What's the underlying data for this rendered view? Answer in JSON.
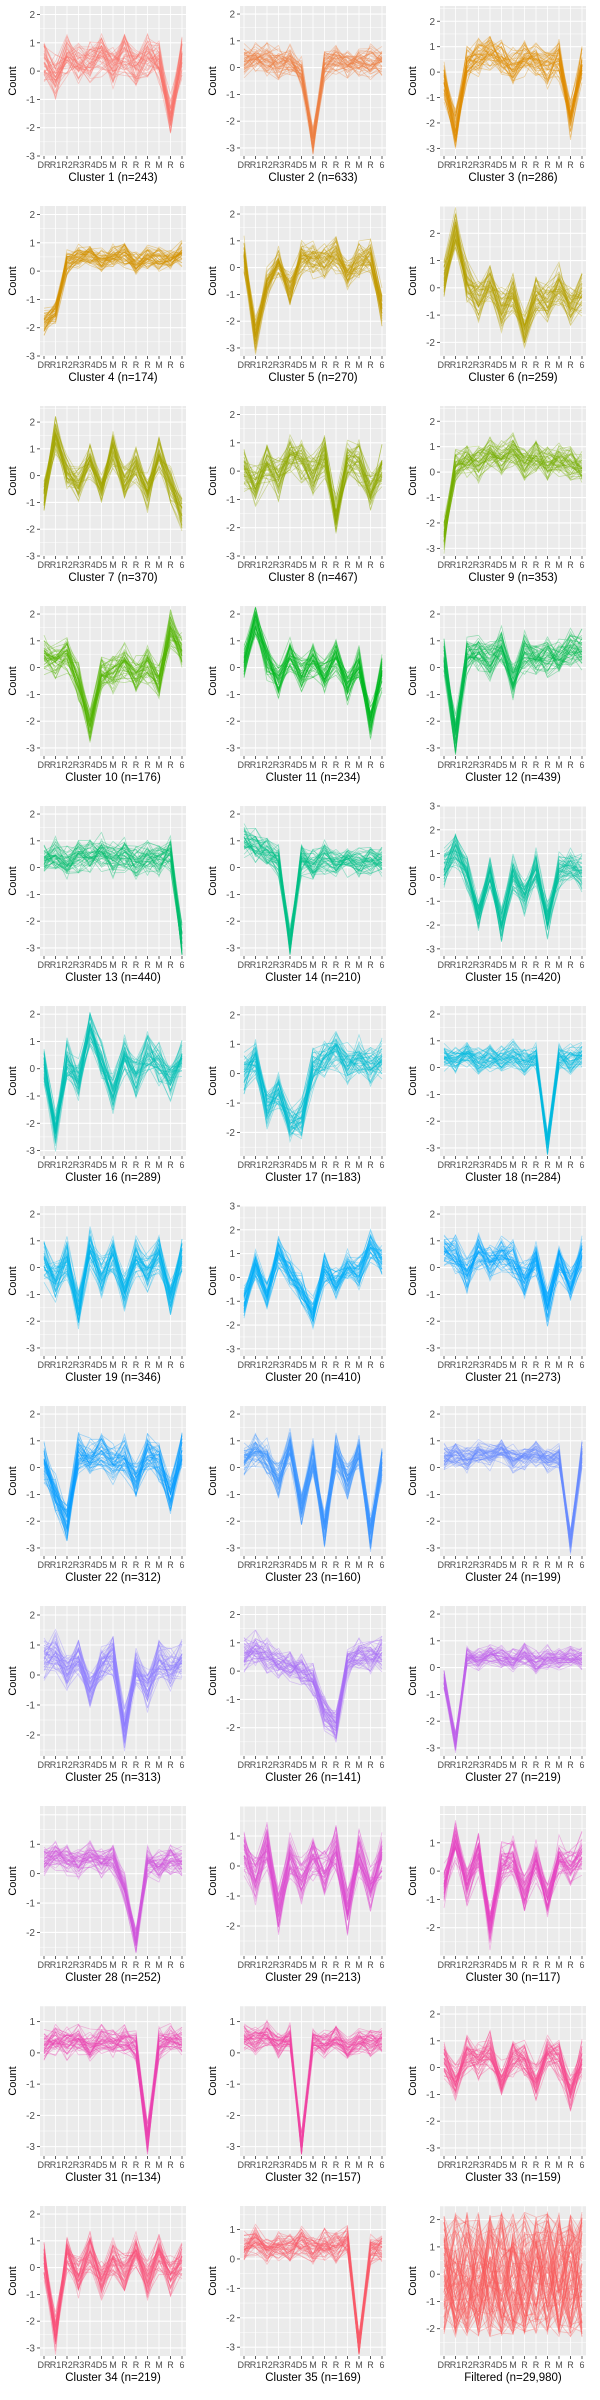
{
  "figure": {
    "ylabel": "Count",
    "x_tick_labels": [
      "DR",
      "R1",
      "R2",
      "R3",
      "R4",
      "D5",
      "M",
      "R",
      "R",
      "R",
      "M",
      "R",
      "6"
    ],
    "panel_background": "#EBEBEB",
    "grid_color": "#FFFFFF"
  },
  "chart_data": [
    {
      "type": "line",
      "title": "Cluster 1 (n=243)",
      "ylabel": "Count",
      "ylim": [
        -3,
        2.3
      ],
      "yticks": [
        -3,
        -2,
        -1,
        0,
        1,
        2
      ],
      "color": "#F8766D",
      "mean_profile": [
        0.3,
        -0.2,
        0.5,
        0.2,
        0.3,
        0.6,
        0.2,
        0.6,
        0.1,
        0.5,
        0.3,
        -1.5,
        0.6
      ],
      "spread": 0.9
    },
    {
      "type": "line",
      "title": "Cluster 2 (n=633)",
      "ylabel": "Count",
      "ylim": [
        -3.3,
        2.3
      ],
      "yticks": [
        -3,
        -2,
        -1,
        0,
        1,
        2
      ],
      "color": "#EE8044",
      "mean_profile": [
        0.3,
        0.4,
        0.3,
        0.2,
        0.3,
        -0.2,
        -2.8,
        0.1,
        0.3,
        0.2,
        0.3,
        0.2,
        0.3
      ],
      "spread": 0.7
    },
    {
      "type": "line",
      "title": "Cluster 3 (n=286)",
      "ylabel": "Count",
      "ylim": [
        -3.3,
        2.6
      ],
      "yticks": [
        -3,
        -2,
        -1,
        0,
        1,
        2
      ],
      "color": "#E08B00",
      "mean_profile": [
        -0.3,
        -2.3,
        0.3,
        0.6,
        0.8,
        0.5,
        0.3,
        0.6,
        0.4,
        0.2,
        0.5,
        -1.8,
        0.3
      ],
      "spread": 0.9
    },
    {
      "type": "line",
      "title": "Cluster 4 (n=174)",
      "ylabel": "Count",
      "ylim": [
        -3,
        2.3
      ],
      "yticks": [
        -3,
        -2,
        -1,
        0,
        1,
        2
      ],
      "color": "#D39200",
      "mean_profile": [
        -1.8,
        -1.4,
        0.3,
        0.5,
        0.6,
        0.4,
        0.5,
        0.6,
        0.3,
        0.5,
        0.4,
        0.4,
        0.6
      ],
      "spread": 0.5
    },
    {
      "type": "line",
      "title": "Cluster 5 (n=270)",
      "ylabel": "Count",
      "ylim": [
        -3.3,
        2.3
      ],
      "yticks": [
        -3,
        -2,
        -1,
        0,
        1,
        2
      ],
      "color": "#C49A00",
      "mean_profile": [
        0.5,
        -2.5,
        -0.6,
        0.2,
        -0.8,
        0.4,
        0.3,
        0.2,
        0.5,
        -0.3,
        0.3,
        0.5,
        -1.5
      ],
      "spread": 0.8
    },
    {
      "type": "line",
      "title": "Cluster 6 (n=259)",
      "ylabel": "Count",
      "ylim": [
        -2.5,
        3
      ],
      "yticks": [
        -2,
        -1,
        0,
        1,
        2
      ],
      "color": "#B5A000",
      "mean_profile": [
        0.3,
        2.2,
        0.2,
        -0.5,
        0.2,
        -0.8,
        -0.2,
        -1.5,
        -0.3,
        -0.5,
        0.1,
        -0.7,
        -0.2
      ],
      "spread": 0.9
    },
    {
      "type": "line",
      "title": "Cluster 7 (n=370)",
      "ylabel": "Count",
      "ylim": [
        -3,
        2.6
      ],
      "yticks": [
        -3,
        -2,
        -1,
        0,
        1,
        2
      ],
      "color": "#A3A500",
      "mean_profile": [
        -0.7,
        1.5,
        0.1,
        -0.3,
        0.5,
        -0.5,
        1.0,
        -0.3,
        0.4,
        -0.6,
        0.8,
        -0.3,
        -1.4
      ],
      "spread": 0.8
    },
    {
      "type": "line",
      "title": "Cluster 8 (n=467)",
      "ylabel": "Count",
      "ylim": [
        -3,
        2.3
      ],
      "yticks": [
        -3,
        -2,
        -1,
        0,
        1,
        2
      ],
      "color": "#8FAA00",
      "mean_profile": [
        0.1,
        -0.5,
        0.3,
        -0.3,
        0.6,
        0.4,
        -0.2,
        0.5,
        -1.5,
        0.4,
        0.3,
        -0.6,
        0.2
      ],
      "spread": 0.9
    },
    {
      "type": "line",
      "title": "Cluster 9 (n=353)",
      "ylabel": "Count",
      "ylim": [
        -3.3,
        2.6
      ],
      "yticks": [
        -3,
        -2,
        -1,
        0,
        1,
        2
      ],
      "color": "#75AF00",
      "mean_profile": [
        -2.5,
        0.3,
        0.5,
        0.3,
        0.7,
        0.5,
        0.9,
        0.4,
        0.6,
        0.3,
        0.5,
        0.4,
        0.2
      ],
      "spread": 0.8
    },
    {
      "type": "line",
      "title": "Cluster 10 (n=176)",
      "ylabel": "Count",
      "ylim": [
        -3.3,
        2.3
      ],
      "yticks": [
        -3,
        -2,
        -1,
        0,
        1,
        2
      ],
      "color": "#53B400",
      "mean_profile": [
        0.5,
        0.3,
        0.5,
        -0.5,
        -2.2,
        -0.3,
        -0.2,
        0.2,
        -0.3,
        0.1,
        -0.5,
        1.5,
        0.6
      ],
      "spread": 0.8
    },
    {
      "type": "line",
      "title": "Cluster 11 (n=234)",
      "ylabel": "Count",
      "ylim": [
        -3.3,
        2.3
      ],
      "yticks": [
        -3,
        -2,
        -1,
        0,
        1,
        2
      ],
      "color": "#00B81F",
      "mean_profile": [
        0.2,
        1.8,
        0.3,
        -0.5,
        0.4,
        -0.3,
        0.3,
        -0.3,
        0.5,
        -0.8,
        0.2,
        -2.0,
        -0.2
      ],
      "spread": 0.8
    },
    {
      "type": "line",
      "title": "Cluster 12 (n=439)",
      "ylabel": "Count",
      "ylim": [
        -3.3,
        2.3
      ],
      "yticks": [
        -3,
        -2,
        -1,
        0,
        1,
        2
      ],
      "color": "#00BB4E",
      "mean_profile": [
        0.5,
        -2.5,
        0.4,
        0.6,
        0.2,
        0.7,
        -0.5,
        0.6,
        0.4,
        0.5,
        0.3,
        0.8,
        0.6
      ],
      "spread": 0.9
    },
    {
      "type": "line",
      "title": "Cluster 13 (n=440)",
      "ylabel": "Count",
      "ylim": [
        -3.3,
        2.3
      ],
      "yticks": [
        -3,
        -2,
        -1,
        0,
        1,
        2
      ],
      "color": "#00BE6C",
      "mean_profile": [
        0.3,
        0.5,
        0.2,
        0.5,
        0.4,
        0.6,
        0.3,
        0.5,
        0.2,
        0.4,
        0.3,
        0.5,
        -2.8
      ],
      "spread": 0.8
    },
    {
      "type": "line",
      "title": "Cluster 14 (n=210)",
      "ylabel": "Count",
      "ylim": [
        -3.3,
        2.3
      ],
      "yticks": [
        -3,
        -2,
        -1,
        0,
        1,
        2
      ],
      "color": "#00C087",
      "mean_profile": [
        1.0,
        0.8,
        0.6,
        0.2,
        -2.8,
        0.3,
        0.1,
        0.4,
        0.2,
        0.3,
        0.2,
        0.3,
        0.2
      ],
      "spread": 0.7
    },
    {
      "type": "line",
      "title": "Cluster 15 (n=420)",
      "ylabel": "Count",
      "ylim": [
        -3.3,
        3
      ],
      "yticks": [
        -3,
        -2,
        -1,
        0,
        1,
        2,
        3
      ],
      "color": "#00C19F",
      "mean_profile": [
        0.4,
        1.2,
        0.2,
        -1.5,
        0.3,
        -2.0,
        0.2,
        -0.8,
        0.4,
        -1.8,
        0.3,
        0.6,
        0.2
      ],
      "spread": 0.9
    },
    {
      "type": "line",
      "title": "Cluster 16 (n=289)",
      "ylabel": "Count",
      "ylim": [
        -3.2,
        2.3
      ],
      "yticks": [
        -3,
        -2,
        -1,
        0,
        1,
        2
      ],
      "color": "#00C0B5",
      "mean_profile": [
        0.2,
        -2.3,
        0.4,
        -0.5,
        1.5,
        0.3,
        -0.8,
        0.5,
        -0.3,
        0.6,
        0.2,
        -0.5,
        0.4
      ],
      "spread": 0.9
    },
    {
      "type": "line",
      "title": "Cluster 17 (n=183)",
      "ylabel": "Count",
      "ylim": [
        -2.8,
        2.3
      ],
      "yticks": [
        -2,
        -1,
        0,
        1,
        2
      ],
      "color": "#00BDD0",
      "mean_profile": [
        0.0,
        0.5,
        -1.2,
        -0.5,
        -1.8,
        -1.5,
        0.2,
        0.5,
        0.8,
        0.3,
        0.6,
        0.2,
        0.5
      ],
      "spread": 0.8
    },
    {
      "type": "line",
      "title": "Cluster 18 (n=284)",
      "ylabel": "Count",
      "ylim": [
        -3.3,
        2.3
      ],
      "yticks": [
        -3,
        -2,
        -1,
        0,
        1,
        2
      ],
      "color": "#00BAE0",
      "mean_profile": [
        0.4,
        0.3,
        0.5,
        0.2,
        0.4,
        0.3,
        0.5,
        0.2,
        0.4,
        -2.8,
        0.4,
        0.3,
        0.4
      ],
      "spread": 0.6
    },
    {
      "type": "line",
      "title": "Cluster 19 (n=346)",
      "ylabel": "Count",
      "ylim": [
        -3.3,
        2.3
      ],
      "yticks": [
        -3,
        -2,
        -1,
        0,
        1,
        2
      ],
      "color": "#00B5EE",
      "mean_profile": [
        0.3,
        -0.5,
        0.4,
        -1.5,
        0.8,
        -0.3,
        0.5,
        -1.0,
        0.5,
        -0.2,
        0.6,
        -1.2,
        0.4
      ],
      "spread": 0.9
    },
    {
      "type": "line",
      "title": "Cluster 20 (n=410)",
      "ylabel": "Count",
      "ylim": [
        -3.3,
        3
      ],
      "yticks": [
        -3,
        -2,
        -1,
        0,
        1,
        2,
        3
      ],
      "color": "#00AEF8",
      "mean_profile": [
        -1.0,
        0.5,
        -0.8,
        1.0,
        0.2,
        -0.5,
        -1.5,
        0.4,
        -0.3,
        0.6,
        0.2,
        1.3,
        0.8
      ],
      "spread": 0.8
    },
    {
      "type": "line",
      "title": "Cluster 21 (n=273)",
      "ylabel": "Count",
      "ylim": [
        -3.3,
        2.3
      ],
      "yticks": [
        -3,
        -2,
        -1,
        0,
        1,
        2
      ],
      "color": "#00A6FF",
      "mean_profile": [
        0.7,
        0.5,
        -0.3,
        0.6,
        0.2,
        0.5,
        0.3,
        -0.5,
        0.4,
        -1.5,
        0.2,
        -0.6,
        0.5
      ],
      "spread": 0.8
    },
    {
      "type": "line",
      "title": "Cluster 22 (n=312)",
      "ylabel": "Count",
      "ylim": [
        -3.3,
        2.3
      ],
      "yticks": [
        -3,
        -2,
        -1,
        0,
        1,
        2
      ],
      "color": "#0A9EFF",
      "mean_profile": [
        0.2,
        -1.0,
        -2.0,
        0.5,
        0.3,
        0.6,
        0.2,
        0.4,
        -0.5,
        0.5,
        0.3,
        -1.0,
        0.6
      ],
      "spread": 0.9
    },
    {
      "type": "line",
      "title": "Cluster 23 (n=160)",
      "ylabel": "Count",
      "ylim": [
        -3.3,
        2.3
      ],
      "yticks": [
        -3,
        -2,
        -1,
        0,
        1,
        2
      ],
      "color": "#3D96FF",
      "mean_profile": [
        0.3,
        0.6,
        0.4,
        -0.5,
        0.8,
        -1.5,
        0.4,
        -2.3,
        0.6,
        -0.5,
        0.5,
        -2.5,
        0.2
      ],
      "spread": 0.8
    },
    {
      "type": "line",
      "title": "Cluster 24 (n=199)",
      "ylabel": "Count",
      "ylim": [
        -3.3,
        2.3
      ],
      "yticks": [
        -3,
        -2,
        -1,
        0,
        1,
        2
      ],
      "color": "#6B8BFF",
      "mean_profile": [
        0.4,
        0.5,
        0.3,
        0.5,
        0.4,
        0.6,
        0.3,
        0.4,
        0.5,
        0.3,
        0.4,
        -2.8,
        0.5
      ],
      "spread": 0.6
    },
    {
      "type": "line",
      "title": "Cluster 25 (n=313)",
      "ylabel": "Count",
      "ylim": [
        -2.7,
        2.3
      ],
      "yticks": [
        -2,
        -1,
        0,
        1,
        2
      ],
      "color": "#8F7FFF",
      "mean_profile": [
        0.5,
        0.8,
        0.2,
        0.6,
        -0.5,
        0.4,
        0.6,
        -1.8,
        0.3,
        -0.5,
        0.5,
        0.2,
        0.6
      ],
      "spread": 0.8
    },
    {
      "type": "line",
      "title": "Cluster 26 (n=141)",
      "ylabel": "Count",
      "ylim": [
        -3,
        2.3
      ],
      "yticks": [
        -2,
        -1,
        0,
        1,
        2
      ],
      "color": "#AA71F7",
      "mean_profile": [
        0.6,
        0.8,
        0.5,
        0.3,
        0.2,
        0.0,
        -0.3,
        -1.5,
        -2.0,
        0.3,
        0.6,
        0.5,
        0.6
      ],
      "spread": 0.7
    },
    {
      "type": "line",
      "title": "Cluster 27 (n=219)",
      "ylabel": "Count",
      "ylim": [
        -3.3,
        2.3
      ],
      "yticks": [
        -3,
        -2,
        -1,
        0,
        1,
        2
      ],
      "color": "#BF64EB",
      "mean_profile": [
        -0.5,
        -2.8,
        0.4,
        0.3,
        0.5,
        0.4,
        0.3,
        0.5,
        0.2,
        0.4,
        0.3,
        0.4,
        0.3
      ],
      "spread": 0.5
    },
    {
      "type": "line",
      "title": "Cluster 28 (n=252)",
      "ylabel": "Count",
      "ylim": [
        -2.8,
        2.3
      ],
      "yticks": [
        -2,
        -1,
        0,
        1
      ],
      "color": "#D058DD",
      "mean_profile": [
        0.4,
        0.6,
        0.5,
        0.3,
        0.6,
        0.4,
        0.5,
        -0.5,
        -2.3,
        0.4,
        0.3,
        0.5,
        0.4
      ],
      "spread": 0.6
    },
    {
      "type": "line",
      "title": "Cluster 29 (n=213)",
      "ylabel": "Count",
      "ylim": [
        -3,
        2
      ],
      "yticks": [
        -2,
        -1,
        0,
        1
      ],
      "color": "#DC4ED0",
      "mean_profile": [
        0.5,
        -0.5,
        0.6,
        -1.5,
        0.4,
        -0.5,
        0.3,
        -0.3,
        0.6,
        -1.5,
        0.4,
        -0.8,
        0.3
      ],
      "spread": 0.9
    },
    {
      "type": "line",
      "title": "Cluster 30 (n=117)",
      "ylabel": "Count",
      "ylim": [
        -3,
        2.3
      ],
      "yticks": [
        -2,
        -1,
        0,
        1
      ],
      "color": "#E546C2",
      "mean_profile": [
        -0.5,
        1.0,
        -0.5,
        0.6,
        -2.0,
        0.3,
        0.5,
        -0.8,
        0.4,
        -1.0,
        0.5,
        0.2,
        0.6
      ],
      "spread": 0.9
    },
    {
      "type": "line",
      "title": "Cluster 31 (n=134)",
      "ylabel": "Count",
      "ylim": [
        -3.3,
        1.5
      ],
      "yticks": [
        -3,
        -2,
        -1,
        0,
        1
      ],
      "color": "#EC44B3",
      "mean_profile": [
        0.2,
        0.4,
        0.3,
        0.5,
        0.2,
        0.4,
        0.3,
        0.5,
        0.2,
        -2.8,
        0.3,
        0.4,
        0.3
      ],
      "spread": 0.6
    },
    {
      "type": "line",
      "title": "Cluster 32 (n=157)",
      "ylabel": "Count",
      "ylim": [
        -3.3,
        1.5
      ],
      "yticks": [
        -3,
        -2,
        -1,
        0,
        1
      ],
      "color": "#F146A2",
      "mean_profile": [
        0.5,
        0.4,
        0.6,
        0.3,
        0.5,
        -3.0,
        0.4,
        0.3,
        0.5,
        0.2,
        0.4,
        0.3,
        0.4
      ],
      "spread": 0.5
    },
    {
      "type": "line",
      "title": "Cluster 33 (n=159)",
      "ylabel": "Count",
      "ylim": [
        -3.3,
        2.3
      ],
      "yticks": [
        -3,
        -2,
        -1,
        0,
        1,
        2
      ],
      "color": "#F64B90",
      "mean_profile": [
        0.3,
        -0.6,
        0.5,
        0.2,
        0.6,
        -0.5,
        0.4,
        0.3,
        -0.5,
        0.5,
        0.3,
        -1.0,
        0.4
      ],
      "spread": 0.8
    },
    {
      "type": "line",
      "title": "Cluster 34 (n=219)",
      "ylabel": "Count",
      "ylim": [
        -3.3,
        2.3
      ],
      "yticks": [
        -3,
        -2,
        -1,
        0,
        1,
        2
      ],
      "color": "#F8537C",
      "mean_profile": [
        0.3,
        -2.5,
        0.5,
        -0.3,
        0.6,
        -0.5,
        0.4,
        -0.2,
        0.6,
        -0.5,
        0.5,
        -0.3,
        0.4
      ],
      "spread": 0.9
    },
    {
      "type": "line",
      "title": "Cluster 35 (n=169)",
      "ylabel": "Count",
      "ylim": [
        -3.3,
        1.8
      ],
      "yticks": [
        -3,
        -2,
        -1,
        0,
        1
      ],
      "color": "#F95D6A",
      "mean_profile": [
        0.4,
        0.6,
        0.3,
        0.5,
        0.4,
        0.6,
        0.3,
        0.5,
        0.4,
        0.6,
        -3.0,
        0.3,
        0.4
      ],
      "spread": 0.6
    },
    {
      "type": "line",
      "title": "Filtered (n=29,980)",
      "ylabel": "Count",
      "ylim": [
        -3,
        2.5
      ],
      "yticks": [
        -2,
        -1,
        0,
        1,
        2
      ],
      "color": "#FA5A5A",
      "mean_profile": [
        0,
        0,
        0,
        0,
        0,
        0,
        0,
        0,
        0,
        0,
        0,
        0,
        0
      ],
      "spread": 2.0
    }
  ]
}
